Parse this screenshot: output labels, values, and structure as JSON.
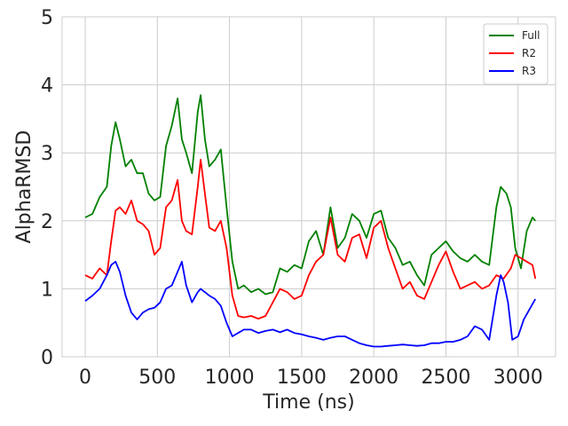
{
  "chart_data": {
    "type": "line",
    "title": "",
    "xlabel": "Time (ns)",
    "ylabel": "AlphaRMSD",
    "xlim": [
      -160,
      3260
    ],
    "ylim": [
      0,
      5
    ],
    "xticks": [
      0,
      500,
      1000,
      1500,
      2000,
      2500,
      3000
    ],
    "yticks": [
      0,
      1,
      2,
      3,
      4,
      5
    ],
    "grid": true,
    "legend_position": "top-right",
    "series": [
      {
        "name": "Full",
        "color": "#008000",
        "points": [
          [
            0,
            2.05
          ],
          [
            50,
            2.1
          ],
          [
            100,
            2.35
          ],
          [
            150,
            2.5
          ],
          [
            180,
            3.1
          ],
          [
            210,
            3.45
          ],
          [
            240,
            3.2
          ],
          [
            280,
            2.8
          ],
          [
            320,
            2.9
          ],
          [
            360,
            2.7
          ],
          [
            400,
            2.7
          ],
          [
            440,
            2.4
          ],
          [
            480,
            2.3
          ],
          [
            520,
            2.35
          ],
          [
            560,
            3.1
          ],
          [
            600,
            3.4
          ],
          [
            640,
            3.8
          ],
          [
            670,
            3.2
          ],
          [
            700,
            3.0
          ],
          [
            740,
            2.7
          ],
          [
            780,
            3.6
          ],
          [
            800,
            3.85
          ],
          [
            830,
            3.2
          ],
          [
            860,
            2.8
          ],
          [
            900,
            2.9
          ],
          [
            940,
            3.05
          ],
          [
            980,
            2.2
          ],
          [
            1020,
            1.4
          ],
          [
            1060,
            1.0
          ],
          [
            1100,
            1.05
          ],
          [
            1150,
            0.95
          ],
          [
            1200,
            1.0
          ],
          [
            1250,
            0.92
          ],
          [
            1300,
            0.95
          ],
          [
            1350,
            1.3
          ],
          [
            1400,
            1.25
          ],
          [
            1450,
            1.35
          ],
          [
            1500,
            1.3
          ],
          [
            1550,
            1.7
          ],
          [
            1600,
            1.85
          ],
          [
            1650,
            1.5
          ],
          [
            1700,
            2.2
          ],
          [
            1750,
            1.6
          ],
          [
            1800,
            1.75
          ],
          [
            1850,
            2.1
          ],
          [
            1900,
            2.0
          ],
          [
            1950,
            1.75
          ],
          [
            2000,
            2.1
          ],
          [
            2050,
            2.15
          ],
          [
            2100,
            1.75
          ],
          [
            2150,
            1.6
          ],
          [
            2200,
            1.35
          ],
          [
            2250,
            1.4
          ],
          [
            2300,
            1.2
          ],
          [
            2350,
            1.05
          ],
          [
            2400,
            1.5
          ],
          [
            2450,
            1.6
          ],
          [
            2500,
            1.7
          ],
          [
            2550,
            1.55
          ],
          [
            2600,
            1.45
          ],
          [
            2650,
            1.4
          ],
          [
            2700,
            1.5
          ],
          [
            2750,
            1.4
          ],
          [
            2800,
            1.35
          ],
          [
            2850,
            2.2
          ],
          [
            2880,
            2.5
          ],
          [
            2920,
            2.4
          ],
          [
            2950,
            2.2
          ],
          [
            2980,
            1.6
          ],
          [
            3020,
            1.3
          ],
          [
            3060,
            1.85
          ],
          [
            3100,
            2.05
          ],
          [
            3120,
            2.0
          ]
        ]
      },
      {
        "name": "R2",
        "color": "#ff0000",
        "points": [
          [
            0,
            1.2
          ],
          [
            50,
            1.15
          ],
          [
            100,
            1.3
          ],
          [
            150,
            1.2
          ],
          [
            180,
            1.7
          ],
          [
            210,
            2.15
          ],
          [
            240,
            2.2
          ],
          [
            280,
            2.1
          ],
          [
            320,
            2.3
          ],
          [
            360,
            2.0
          ],
          [
            400,
            1.95
          ],
          [
            440,
            1.85
          ],
          [
            480,
            1.5
          ],
          [
            520,
            1.6
          ],
          [
            560,
            2.2
          ],
          [
            600,
            2.3
          ],
          [
            640,
            2.6
          ],
          [
            670,
            2.0
          ],
          [
            700,
            1.85
          ],
          [
            740,
            1.8
          ],
          [
            780,
            2.5
          ],
          [
            800,
            2.9
          ],
          [
            830,
            2.4
          ],
          [
            860,
            1.9
          ],
          [
            900,
            1.85
          ],
          [
            940,
            2.0
          ],
          [
            980,
            1.6
          ],
          [
            1020,
            0.9
          ],
          [
            1060,
            0.6
          ],
          [
            1100,
            0.58
          ],
          [
            1150,
            0.6
          ],
          [
            1200,
            0.56
          ],
          [
            1250,
            0.6
          ],
          [
            1300,
            0.8
          ],
          [
            1350,
            1.0
          ],
          [
            1400,
            0.95
          ],
          [
            1450,
            0.85
          ],
          [
            1500,
            0.9
          ],
          [
            1550,
            1.2
          ],
          [
            1600,
            1.4
          ],
          [
            1650,
            1.5
          ],
          [
            1700,
            2.05
          ],
          [
            1750,
            1.5
          ],
          [
            1800,
            1.4
          ],
          [
            1850,
            1.75
          ],
          [
            1900,
            1.8
          ],
          [
            1950,
            1.45
          ],
          [
            2000,
            1.9
          ],
          [
            2050,
            2.0
          ],
          [
            2100,
            1.6
          ],
          [
            2150,
            1.3
          ],
          [
            2200,
            1.0
          ],
          [
            2250,
            1.1
          ],
          [
            2300,
            0.9
          ],
          [
            2350,
            0.85
          ],
          [
            2400,
            1.1
          ],
          [
            2450,
            1.35
          ],
          [
            2500,
            1.55
          ],
          [
            2550,
            1.25
          ],
          [
            2600,
            1.0
          ],
          [
            2650,
            1.05
          ],
          [
            2700,
            1.1
          ],
          [
            2750,
            1.0
          ],
          [
            2800,
            1.05
          ],
          [
            2850,
            1.2
          ],
          [
            2900,
            1.15
          ],
          [
            2950,
            1.3
          ],
          [
            2980,
            1.5
          ],
          [
            3020,
            1.45
          ],
          [
            3060,
            1.4
          ],
          [
            3100,
            1.35
          ],
          [
            3120,
            1.15
          ]
        ]
      },
      {
        "name": "R3",
        "color": "#0000ff",
        "points": [
          [
            0,
            0.82
          ],
          [
            50,
            0.9
          ],
          [
            100,
            1.0
          ],
          [
            150,
            1.2
          ],
          [
            180,
            1.35
          ],
          [
            210,
            1.4
          ],
          [
            240,
            1.25
          ],
          [
            280,
            0.9
          ],
          [
            320,
            0.65
          ],
          [
            360,
            0.55
          ],
          [
            400,
            0.65
          ],
          [
            440,
            0.7
          ],
          [
            480,
            0.72
          ],
          [
            520,
            0.8
          ],
          [
            560,
            1.0
          ],
          [
            600,
            1.05
          ],
          [
            640,
            1.25
          ],
          [
            670,
            1.4
          ],
          [
            700,
            1.05
          ],
          [
            740,
            0.8
          ],
          [
            780,
            0.95
          ],
          [
            800,
            1.0
          ],
          [
            830,
            0.95
          ],
          [
            860,
            0.9
          ],
          [
            900,
            0.85
          ],
          [
            940,
            0.75
          ],
          [
            980,
            0.5
          ],
          [
            1020,
            0.3
          ],
          [
            1060,
            0.35
          ],
          [
            1100,
            0.4
          ],
          [
            1150,
            0.4
          ],
          [
            1200,
            0.35
          ],
          [
            1250,
            0.38
          ],
          [
            1300,
            0.4
          ],
          [
            1350,
            0.36
          ],
          [
            1400,
            0.4
          ],
          [
            1450,
            0.35
          ],
          [
            1500,
            0.33
          ],
          [
            1550,
            0.3
          ],
          [
            1600,
            0.28
          ],
          [
            1650,
            0.25
          ],
          [
            1700,
            0.28
          ],
          [
            1750,
            0.3
          ],
          [
            1800,
            0.3
          ],
          [
            1850,
            0.25
          ],
          [
            1900,
            0.2
          ],
          [
            1950,
            0.17
          ],
          [
            2000,
            0.15
          ],
          [
            2050,
            0.15
          ],
          [
            2100,
            0.16
          ],
          [
            2150,
            0.17
          ],
          [
            2200,
            0.18
          ],
          [
            2250,
            0.17
          ],
          [
            2300,
            0.16
          ],
          [
            2350,
            0.17
          ],
          [
            2400,
            0.2
          ],
          [
            2450,
            0.2
          ],
          [
            2500,
            0.22
          ],
          [
            2550,
            0.22
          ],
          [
            2600,
            0.25
          ],
          [
            2650,
            0.3
          ],
          [
            2700,
            0.45
          ],
          [
            2750,
            0.4
          ],
          [
            2800,
            0.25
          ],
          [
            2850,
            0.9
          ],
          [
            2880,
            1.2
          ],
          [
            2900,
            1.1
          ],
          [
            2930,
            0.8
          ],
          [
            2960,
            0.25
          ],
          [
            3000,
            0.3
          ],
          [
            3040,
            0.55
          ],
          [
            3080,
            0.7
          ],
          [
            3120,
            0.85
          ]
        ]
      }
    ]
  }
}
